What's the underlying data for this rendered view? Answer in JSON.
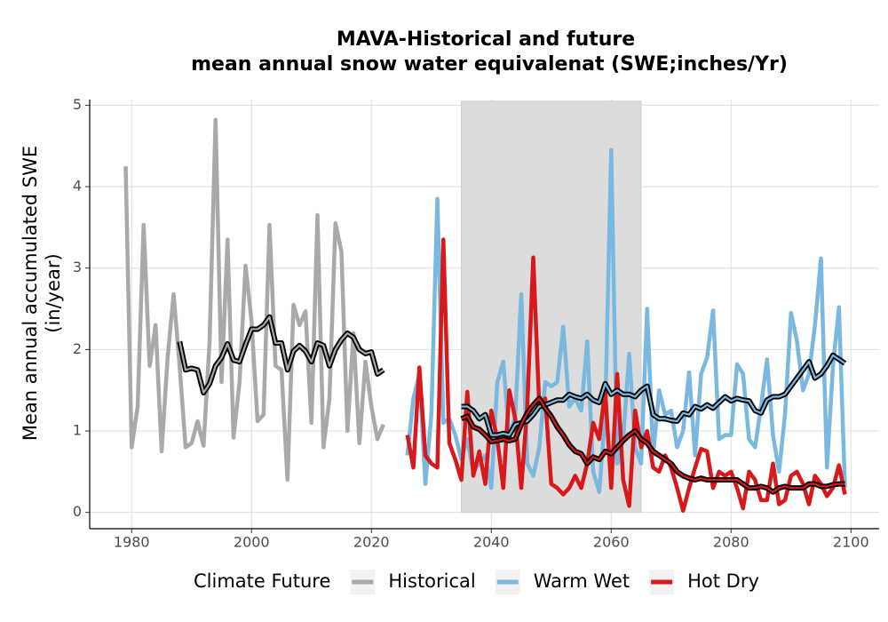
{
  "chart_data": {
    "type": "line",
    "title": [
      "MAVA-Historical and future",
      "mean annual snow water equivalenat (SWE;inches/Yr)"
    ],
    "y_label": [
      "Mean annual accumulated SWE",
      "(in/year)"
    ],
    "legend_title": "Climate Future",
    "legend_position": "bottom",
    "grid": true,
    "xlim": [
      1973,
      2104.7
    ],
    "xticks": [
      1980,
      2000,
      2020,
      2040,
      2060,
      2080,
      2100
    ],
    "ylim": [
      -0.2,
      5.07
    ],
    "yticks": [
      0,
      1,
      2,
      3,
      4,
      5
    ],
    "shaded_region": {
      "x": [
        2035,
        2065
      ],
      "y": [
        0,
        5.05
      ],
      "color": "#dcdcdc"
    },
    "smooth_color": "#000000",
    "series": [
      {
        "name": "Historical",
        "color": "#a9a9a9",
        "x": [
          1979,
          1980,
          1981,
          1982,
          1983,
          1984,
          1985,
          1986,
          1987,
          1988,
          1989,
          1990,
          1991,
          1992,
          1993,
          1994,
          1995,
          1996,
          1997,
          1998,
          1999,
          2000,
          2001,
          2002,
          2003,
          2004,
          2005,
          2006,
          2007,
          2008,
          2009,
          2010,
          2011,
          2012,
          2013,
          2014,
          2015,
          2016,
          2017,
          2018,
          2019,
          2020,
          2021,
          2022
        ],
        "values": [
          4.25,
          0.8,
          1.3,
          3.53,
          1.8,
          2.3,
          0.75,
          1.9,
          2.68,
          1.8,
          0.8,
          0.85,
          1.12,
          0.82,
          2.1,
          4.82,
          1.6,
          3.35,
          0.92,
          1.6,
          3.03,
          2.35,
          1.12,
          1.2,
          3.53,
          1.8,
          1.75,
          0.4,
          2.55,
          2.3,
          2.47,
          1.1,
          3.65,
          0.8,
          1.4,
          3.55,
          3.2,
          1.0,
          2.2,
          0.85,
          1.85,
          1.3,
          0.9,
          1.08
        ],
        "smooth": [
          null,
          null,
          null,
          null,
          null,
          null,
          null,
          null,
          null,
          2.1,
          1.75,
          1.77,
          1.75,
          1.47,
          1.58,
          1.8,
          1.9,
          2.07,
          1.87,
          1.85,
          2.06,
          2.25,
          2.25,
          2.3,
          2.4,
          2.08,
          2.08,
          1.75,
          1.98,
          2.05,
          1.98,
          1.85,
          2.08,
          2.05,
          1.8,
          2.0,
          2.12,
          2.2,
          2.15,
          2.0,
          1.95,
          1.97,
          1.7,
          1.75
        ]
      },
      {
        "name": "Warm Wet",
        "color": "#7ab8e0",
        "x": [
          2026,
          2027,
          2028,
          2029,
          2030,
          2031,
          2032,
          2033,
          2034,
          2035,
          2036,
          2037,
          2038,
          2039,
          2040,
          2041,
          2042,
          2043,
          2044,
          2045,
          2046,
          2047,
          2048,
          2049,
          2050,
          2051,
          2052,
          2053,
          2054,
          2055,
          2056,
          2057,
          2058,
          2059,
          2060,
          2061,
          2062,
          2063,
          2064,
          2065,
          2066,
          2067,
          2068,
          2069,
          2070,
          2071,
          2072,
          2073,
          2074,
          2075,
          2076,
          2077,
          2078,
          2079,
          2080,
          2081,
          2082,
          2083,
          2084,
          2085,
          2086,
          2087,
          2088,
          2089,
          2090,
          2091,
          2092,
          2093,
          2094,
          2095,
          2096,
          2097,
          2098,
          2099
        ],
        "values": [
          0.7,
          1.4,
          1.7,
          0.35,
          1.2,
          3.85,
          1.1,
          1.15,
          0.95,
          0.65,
          0.9,
          0.5,
          0.6,
          0.7,
          0.3,
          1.6,
          1.85,
          0.9,
          1.2,
          2.68,
          0.6,
          0.45,
          0.8,
          1.6,
          1.55,
          1.6,
          2.28,
          1.3,
          1.4,
          1.25,
          2.1,
          0.5,
          0.25,
          1.2,
          4.45,
          0.6,
          0.9,
          1.95,
          0.8,
          0.6,
          2.5,
          0.7,
          1.5,
          1.2,
          1.25,
          0.8,
          1.0,
          1.72,
          0.7,
          1.7,
          1.9,
          2.48,
          0.9,
          0.95,
          0.95,
          1.82,
          1.7,
          0.9,
          0.8,
          1.3,
          1.88,
          0.95,
          0.5,
          1.2,
          2.45,
          2.1,
          1.5,
          1.7,
          2.3,
          3.12,
          0.55,
          1.8,
          2.52,
          0.3
        ],
        "smooth": [
          null,
          null,
          null,
          null,
          null,
          null,
          null,
          null,
          null,
          1.3,
          1.3,
          1.25,
          1.15,
          1.2,
          0.95,
          0.95,
          0.97,
          0.95,
          1.08,
          1.1,
          1.12,
          1.2,
          1.3,
          1.32,
          1.35,
          1.38,
          1.38,
          1.45,
          1.42,
          1.4,
          1.45,
          1.38,
          1.35,
          1.58,
          1.45,
          1.5,
          1.45,
          1.45,
          1.42,
          1.5,
          1.55,
          1.2,
          1.15,
          1.15,
          1.13,
          1.12,
          1.22,
          1.2,
          1.3,
          1.27,
          1.32,
          1.28,
          1.35,
          1.42,
          1.37,
          1.4,
          1.38,
          1.37,
          1.25,
          1.22,
          1.38,
          1.42,
          1.42,
          1.45,
          1.55,
          1.65,
          1.75,
          1.85,
          1.65,
          1.7,
          1.8,
          1.93,
          1.88,
          1.83
        ]
      },
      {
        "name": "Hot Dry",
        "color": "#d7191c",
        "x": [
          2026,
          2027,
          2028,
          2029,
          2030,
          2031,
          2032,
          2033,
          2034,
          2035,
          2036,
          2037,
          2038,
          2039,
          2040,
          2041,
          2042,
          2043,
          2044,
          2045,
          2046,
          2047,
          2048,
          2049,
          2050,
          2051,
          2052,
          2053,
          2054,
          2055,
          2056,
          2057,
          2058,
          2059,
          2060,
          2061,
          2062,
          2063,
          2064,
          2065,
          2066,
          2067,
          2068,
          2069,
          2070,
          2071,
          2072,
          2073,
          2074,
          2075,
          2076,
          2077,
          2078,
          2079,
          2080,
          2081,
          2082,
          2083,
          2084,
          2085,
          2086,
          2087,
          2088,
          2089,
          2090,
          2091,
          2092,
          2093,
          2094,
          2095,
          2096,
          2097,
          2098,
          2099
        ],
        "values": [
          0.95,
          0.55,
          1.78,
          0.7,
          0.6,
          0.55,
          3.35,
          0.85,
          0.65,
          0.4,
          1.48,
          0.45,
          0.75,
          0.35,
          1.25,
          0.9,
          0.3,
          1.5,
          1.15,
          0.3,
          1.3,
          3.13,
          1.3,
          1.4,
          0.35,
          0.3,
          0.22,
          0.3,
          0.45,
          0.3,
          0.6,
          1.1,
          0.9,
          1.5,
          0.3,
          1.7,
          0.4,
          0.08,
          1.25,
          0.8,
          1.0,
          0.55,
          0.5,
          0.7,
          0.55,
          0.3,
          0.02,
          0.3,
          0.55,
          0.78,
          0.75,
          0.3,
          0.5,
          0.45,
          0.5,
          0.3,
          0.05,
          0.5,
          0.4,
          0.15,
          0.15,
          0.6,
          0.1,
          0.15,
          0.45,
          0.5,
          0.35,
          0.1,
          0.45,
          0.35,
          0.2,
          0.3,
          0.58,
          0.22
        ],
        "smooth": [
          null,
          null,
          null,
          null,
          null,
          null,
          null,
          null,
          null,
          1.15,
          1.18,
          1.05,
          1.02,
          0.95,
          0.87,
          0.88,
          0.9,
          0.88,
          0.9,
          1.08,
          1.22,
          1.32,
          1.4,
          1.28,
          1.18,
          1.05,
          0.95,
          0.83,
          0.75,
          0.72,
          0.6,
          0.68,
          0.65,
          0.75,
          0.72,
          0.8,
          0.88,
          0.95,
          1.0,
          0.9,
          0.85,
          0.75,
          0.7,
          0.65,
          0.6,
          0.5,
          0.45,
          0.42,
          0.4,
          0.42,
          0.4,
          0.4,
          0.4,
          0.4,
          0.4,
          0.4,
          0.35,
          0.3,
          0.3,
          0.32,
          0.3,
          0.25,
          0.3,
          0.32,
          0.3,
          0.3,
          0.3,
          0.35,
          0.35,
          0.32,
          0.32,
          0.34,
          0.35,
          0.35
        ]
      }
    ]
  }
}
